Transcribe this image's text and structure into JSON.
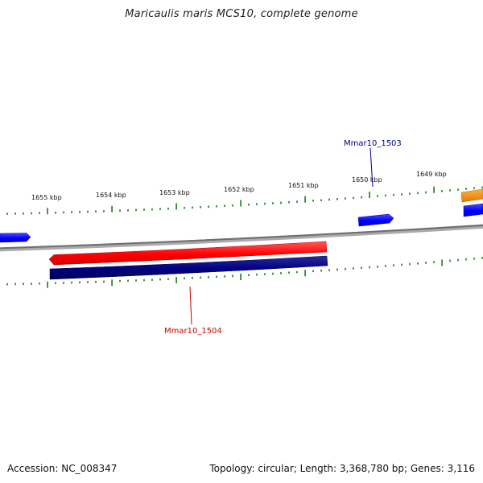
{
  "title": "Maricaulis maris MCS10, complete genome",
  "footer": {
    "accession": "Accession: NC_008347",
    "stats": "Topology: circular; Length: 3,368,780 bp; Genes: 3,116"
  },
  "ruler": {
    "tick_labels": [
      "1655 kbp",
      "1654 kbp",
      "1653 kbp",
      "1652 kbp",
      "1651 kbp",
      "1650 kbp",
      "1649 kbp"
    ]
  },
  "genes": {
    "upper": {
      "label": "Mmar10_1503",
      "color": "#00008b"
    },
    "lower": {
      "label": "Mmar10_1504",
      "color": "#cc0000"
    }
  },
  "colors": {
    "tick": "#1a7a1a",
    "backbone": "#7f7f7f",
    "forward_feature": "#0000ff",
    "reverse_feature": "#ff0000",
    "cds": "#000080",
    "other_feature": "#ff8c00"
  }
}
